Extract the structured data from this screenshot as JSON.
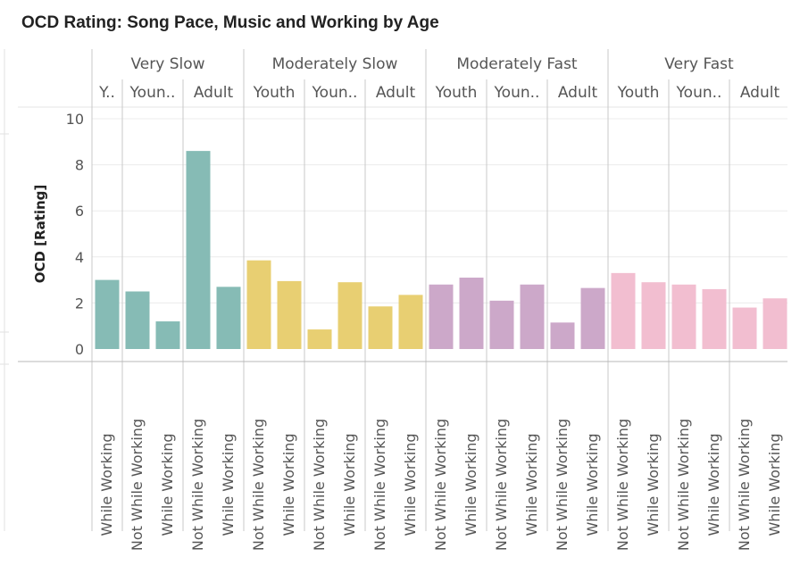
{
  "title": "OCD Rating: Song Pace, Music and Working by Age",
  "chart_data": {
    "type": "bar",
    "title": "OCD Rating: Song Pace, Music and Working by Age",
    "ylabel": "OCD [Rating]",
    "xlabel": "",
    "ylim": [
      0,
      10
    ],
    "yticks": [
      0,
      2,
      4,
      6,
      8,
      10
    ],
    "grid": true,
    "groups": [
      {
        "label": "Very Slow",
        "color": "#86bbb5",
        "subgroups": [
          {
            "label": "Y..",
            "bars": [
              {
                "category": "While Working",
                "value": 3.0
              }
            ]
          },
          {
            "label": "Youn..",
            "bars": [
              {
                "category": "Not While Working",
                "value": 2.5
              },
              {
                "category": "While Working",
                "value": 1.2
              }
            ]
          },
          {
            "label": "Adult",
            "bars": [
              {
                "category": "Not While Working",
                "value": 8.6
              },
              {
                "category": "While Working",
                "value": 2.7
              }
            ]
          }
        ]
      },
      {
        "label": "Moderately Slow",
        "color": "#e8cf72",
        "subgroups": [
          {
            "label": "Youth",
            "bars": [
              {
                "category": "Not While Working",
                "value": 3.85
              },
              {
                "category": "While Working",
                "value": 2.95
              }
            ]
          },
          {
            "label": "Youn..",
            "bars": [
              {
                "category": "Not While Working",
                "value": 0.85
              },
              {
                "category": "While Working",
                "value": 2.9
              }
            ]
          },
          {
            "label": "Adult",
            "bars": [
              {
                "category": "Not While Working",
                "value": 1.85
              },
              {
                "category": "While Working",
                "value": 2.35
              }
            ]
          }
        ]
      },
      {
        "label": "Moderately Fast",
        "color": "#cca8c9",
        "subgroups": [
          {
            "label": "Youth",
            "bars": [
              {
                "category": "Not While Working",
                "value": 2.8
              },
              {
                "category": "While Working",
                "value": 3.1
              }
            ]
          },
          {
            "label": "Youn..",
            "bars": [
              {
                "category": "Not While Working",
                "value": 2.1
              },
              {
                "category": "While Working",
                "value": 2.8
              }
            ]
          },
          {
            "label": "Adult",
            "bars": [
              {
                "category": "Not While Working",
                "value": 1.15
              },
              {
                "category": "While Working",
                "value": 2.65
              }
            ]
          }
        ]
      },
      {
        "label": "Very Fast",
        "color": "#f2bed0",
        "subgroups": [
          {
            "label": "Youth",
            "bars": [
              {
                "category": "Not While Working",
                "value": 3.3
              },
              {
                "category": "While Working",
                "value": 2.9
              }
            ]
          },
          {
            "label": "Youn..",
            "bars": [
              {
                "category": "Not While Working",
                "value": 2.8
              },
              {
                "category": "While Working",
                "value": 2.6
              }
            ]
          },
          {
            "label": "Adult",
            "bars": [
              {
                "category": "Not While Working",
                "value": 1.8
              },
              {
                "category": "While Working",
                "value": 2.2
              }
            ]
          }
        ]
      }
    ]
  }
}
